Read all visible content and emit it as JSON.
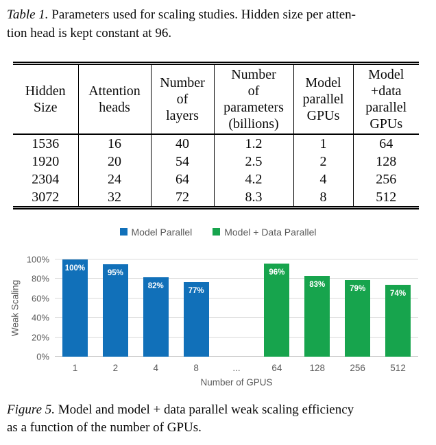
{
  "table_caption": {
    "label": "Table 1.",
    "text": " Parameters used for scaling studies. Hidden size per atten-\ntion head is kept constant at 96."
  },
  "table": {
    "headers": [
      "Hidden\nSize",
      "Attention\nheads",
      "Number\nof\nlayers",
      "Number\nof\nparameters\n(billions)",
      "Model\nparallel\nGPUs",
      "Model\n+data\nparallel\nGPUs"
    ],
    "rows": [
      [
        "1536",
        "16",
        "40",
        "1.2",
        "1",
        "64"
      ],
      [
        "1920",
        "20",
        "54",
        "2.5",
        "2",
        "128"
      ],
      [
        "2304",
        "24",
        "64",
        "4.2",
        "4",
        "256"
      ],
      [
        "3072",
        "32",
        "72",
        "8.3",
        "8",
        "512"
      ]
    ]
  },
  "chart_data": {
    "type": "bar",
    "categories": [
      "1",
      "2",
      "4",
      "8",
      "...",
      "64",
      "128",
      "256",
      "512"
    ],
    "series": [
      {
        "name": "Model Parallel",
        "color": "#1170b9",
        "values": [
          100,
          95,
          82,
          77,
          null,
          null,
          null,
          null,
          null
        ]
      },
      {
        "name": "Model + Data Parallel",
        "color": "#17a44d",
        "values": [
          null,
          null,
          null,
          null,
          null,
          96,
          83,
          79,
          74
        ]
      }
    ],
    "bar_label_suffix": "%",
    "title": "",
    "xlabel": "Number of GPUS",
    "ylabel": "Weak Scaling",
    "yticks": [
      "0%",
      "20%",
      "40%",
      "60%",
      "80%",
      "100%"
    ],
    "ylim": [
      0,
      100
    ],
    "grid": true,
    "legend_position": "top",
    "gridline_color": "#d9d9d9"
  },
  "figure_caption": {
    "label": "Figure 5.",
    "text": " Model and model + data parallel weak scaling efficiency\nas a function of the number of GPUs."
  }
}
